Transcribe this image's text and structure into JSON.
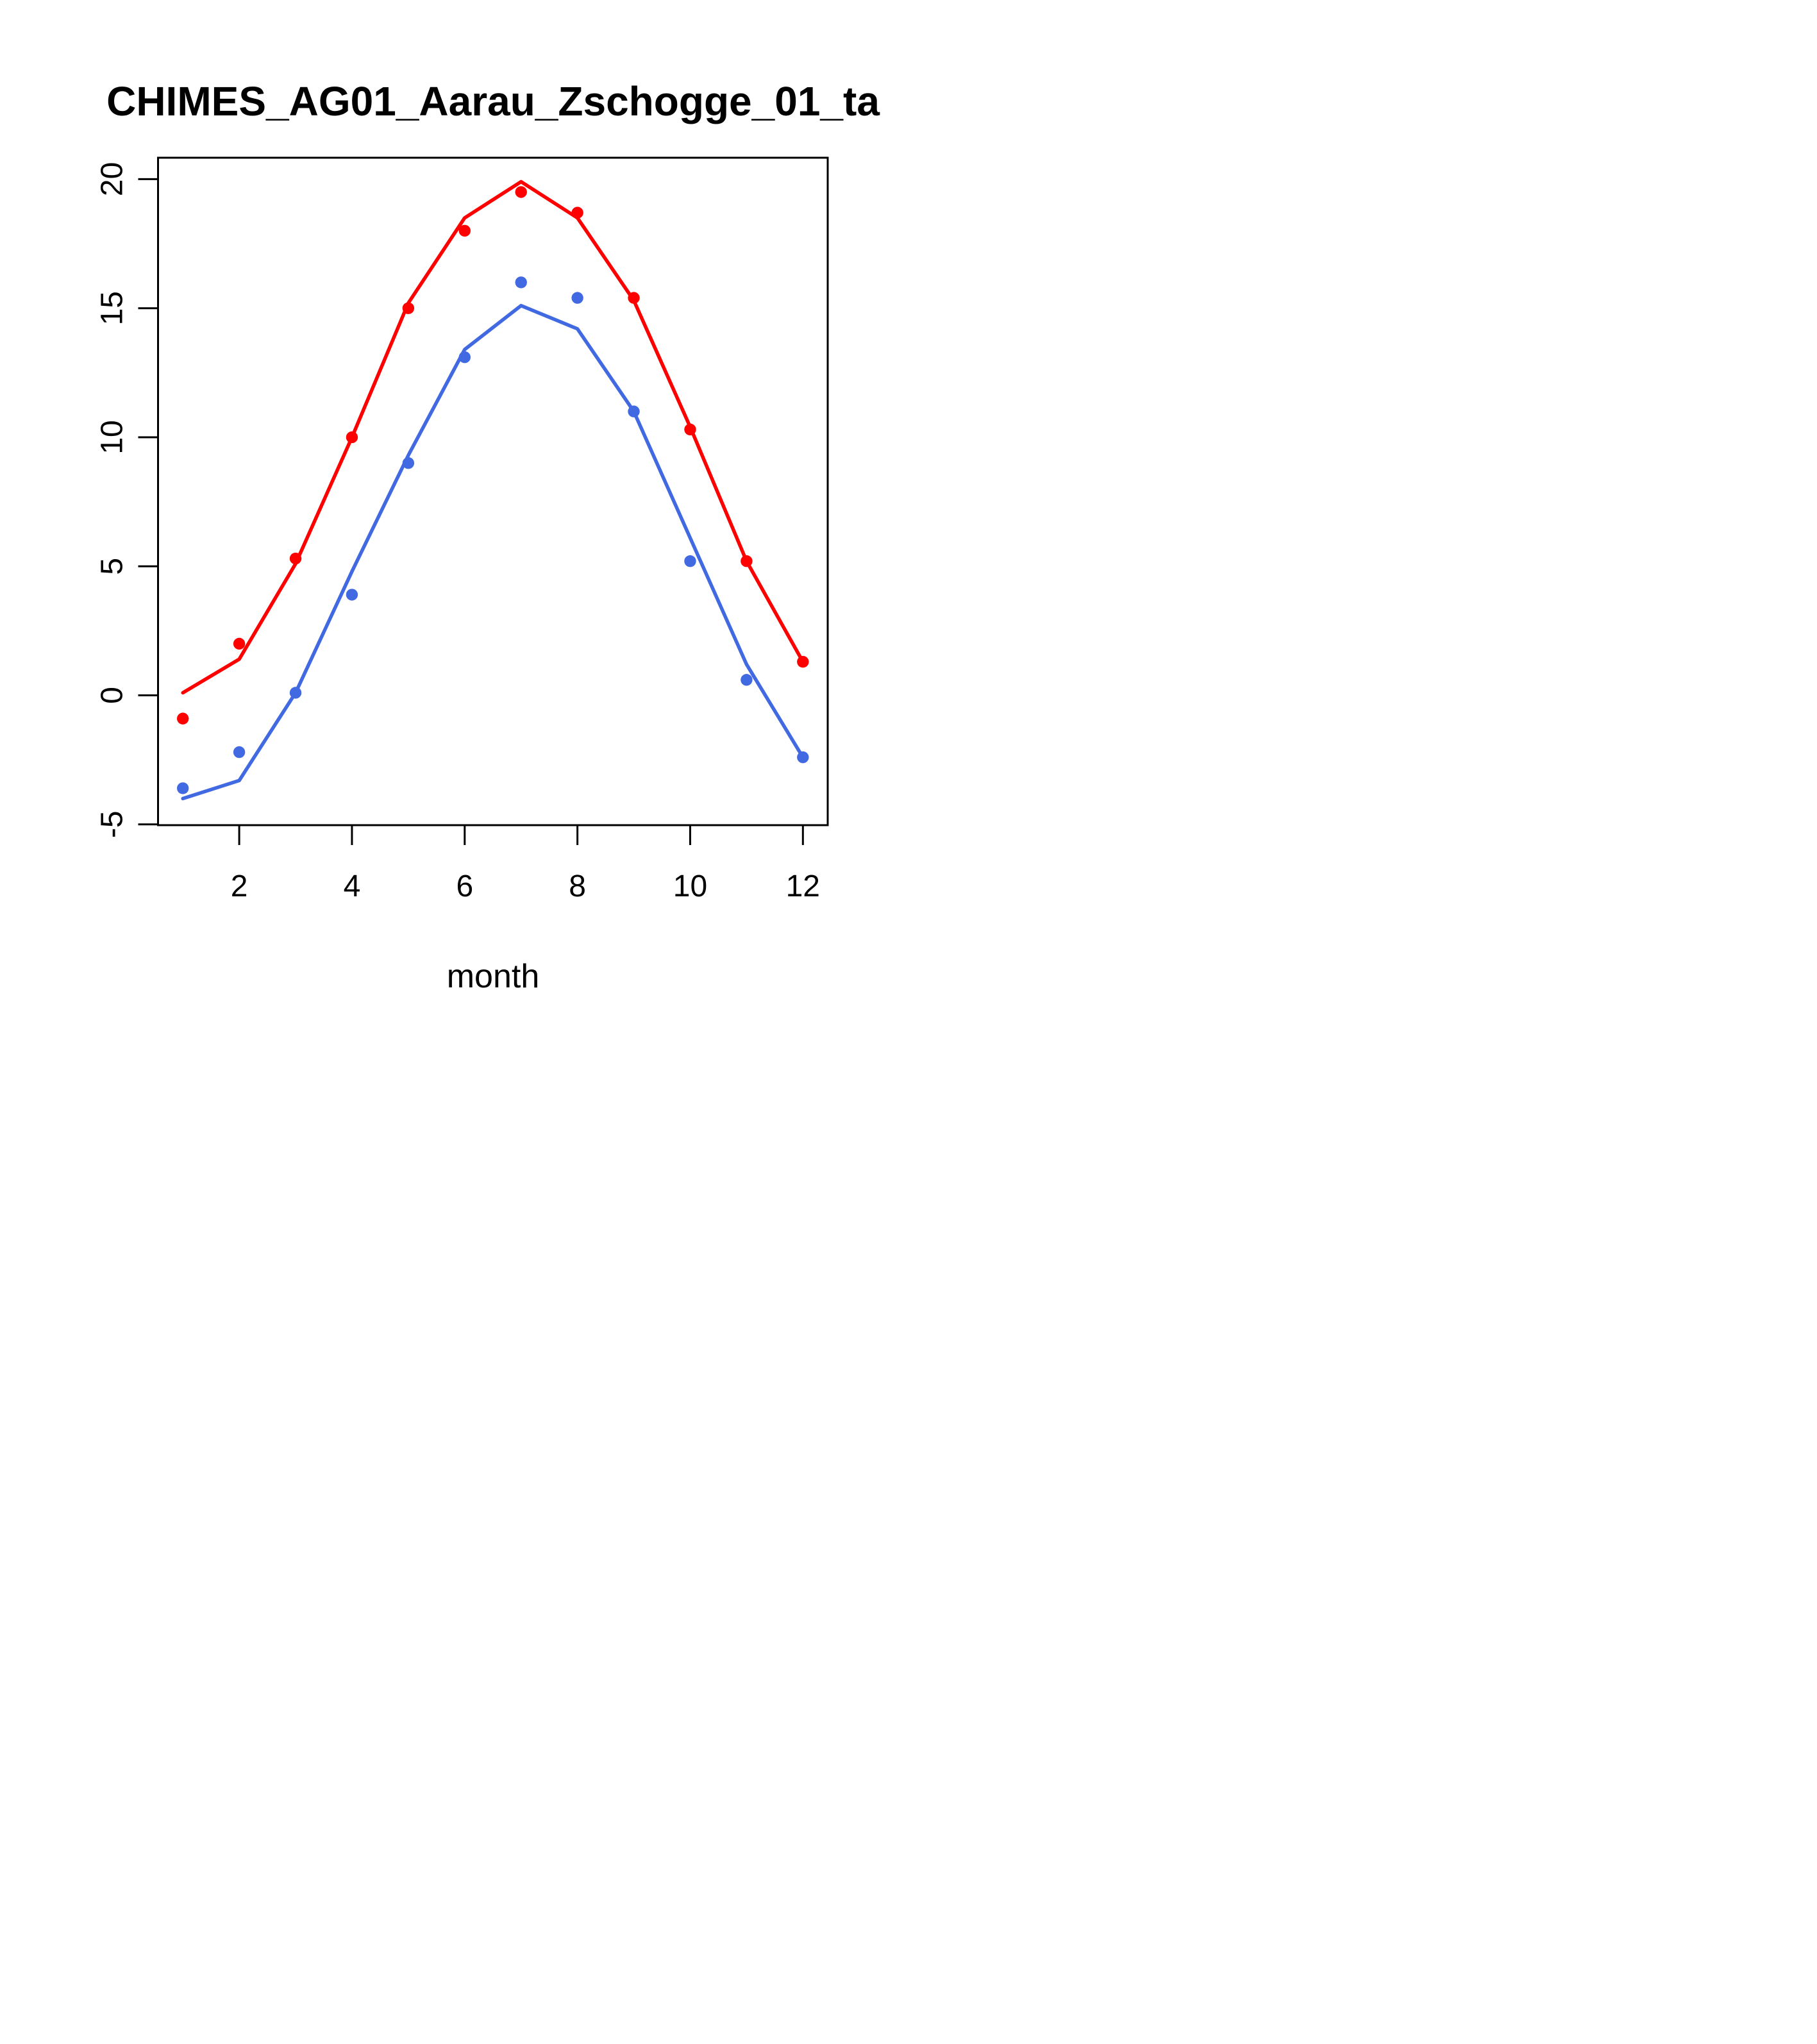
{
  "page": {
    "background": "#ffffff",
    "foreground": "#000000"
  },
  "chart_data": {
    "type": "line",
    "title": "CHIMES_AG01_Aarau_Zschogge_01_ta",
    "xlabel": "month",
    "ylabel": "",
    "x": [
      1,
      2,
      3,
      4,
      5,
      6,
      7,
      8,
      9,
      10,
      11,
      12
    ],
    "series": [
      {
        "name": "red-fitted-line",
        "draw": "line",
        "color": "#ff0000",
        "values": [
          0.1,
          1.4,
          5.1,
          10.0,
          15.2,
          18.5,
          19.9,
          18.5,
          15.3,
          10.4,
          5.2,
          1.3
        ]
      },
      {
        "name": "red-observed-points",
        "draw": "points",
        "color": "#ff0000",
        "values": [
          -0.9,
          2.0,
          5.3,
          10.0,
          15.0,
          18.0,
          19.5,
          18.7,
          15.4,
          10.3,
          5.2,
          1.3
        ]
      },
      {
        "name": "blue-fitted-line",
        "draw": "line",
        "color": "#4169e1",
        "values": [
          -4.0,
          -3.3,
          0.1,
          4.8,
          9.3,
          13.4,
          15.1,
          14.2,
          11.0,
          6.1,
          1.2,
          -2.4
        ]
      },
      {
        "name": "blue-observed-points",
        "draw": "points",
        "color": "#4169e1",
        "values": [
          -3.6,
          -2.2,
          0.1,
          3.9,
          9.0,
          13.1,
          16.0,
          15.4,
          11.0,
          5.2,
          0.6,
          -2.4
        ]
      }
    ],
    "xticks": [
      2,
      4,
      6,
      8,
      10,
      12
    ],
    "yticks": [
      -5,
      0,
      5,
      10,
      15,
      20
    ],
    "xlim": [
      0.56,
      12.44
    ],
    "ylim": [
      -5.03,
      20.83
    ],
    "grid": false,
    "legend": null,
    "box": true
  }
}
